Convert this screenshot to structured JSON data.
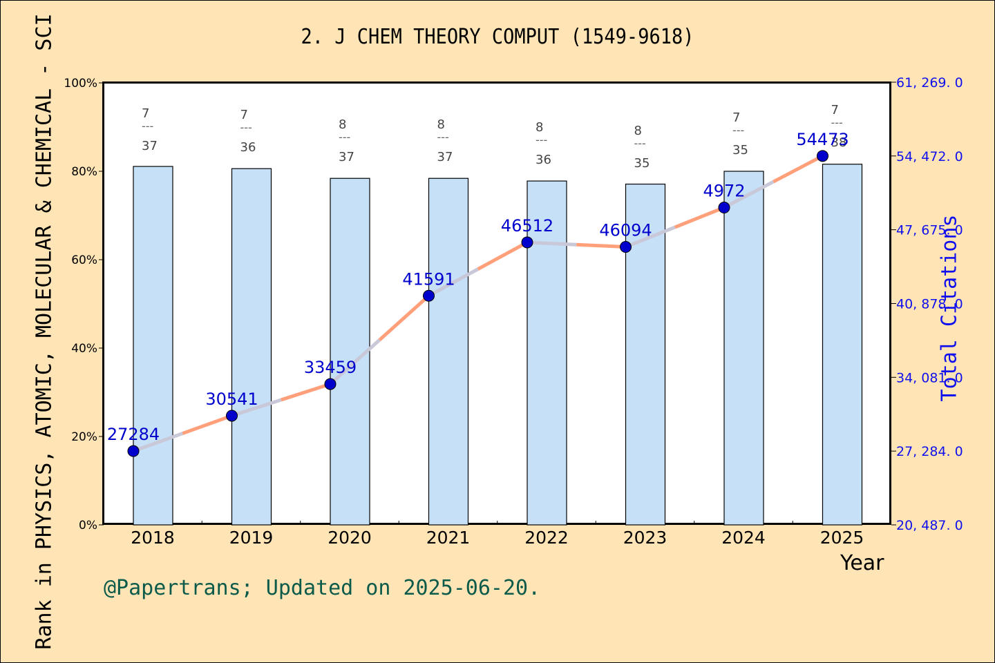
{
  "header": {
    "title": "2. J CHEM THEORY COMPUT (1549-9618)"
  },
  "axes": {
    "left_label": "Rank in PHYSICS, ATOMIC, MOLECULAR & CHEMICAL - SCI",
    "right_label": "Total Citations",
    "x_label": "Year",
    "left_ticks": [
      "0%",
      "20%",
      "40%",
      "60%",
      "80%",
      "100%"
    ],
    "right_ticks": [
      "20, 487. 0",
      "27, 284. 0",
      "34, 081. 0",
      "40, 878. 0",
      "47, 675. 0",
      "54, 472. 0",
      "61, 269. 0"
    ]
  },
  "footer": {
    "text": "@Papertrans; Updated on 2025-06-20."
  },
  "colors": {
    "background": "#FFE4B5",
    "bar_fill": "#C6E0F7",
    "line": "#FFA07A",
    "marker": "#0000CD",
    "citation_label": "#0000CD",
    "right_axis": "#1010EE",
    "footer": "#0B5A4A"
  },
  "chart_data": [
    {
      "type": "bar",
      "title": "2. J CHEM THEORY COMPUT (1549-9618)",
      "xlabel": "Year",
      "ylabel": "Rank in PHYSICS, ATOMIC, MOLECULAR & CHEMICAL - SCI",
      "categories": [
        "2018",
        "2019",
        "2020",
        "2021",
        "2022",
        "2023",
        "2024",
        "2025"
      ],
      "rank": [
        7,
        7,
        8,
        8,
        8,
        8,
        7,
        7
      ],
      "total_in_category": [
        37,
        36,
        37,
        37,
        36,
        35,
        35,
        38
      ],
      "bar_labels": [
        "7/37",
        "7/36",
        "8/37",
        "8/37",
        "8/36",
        "8/35",
        "7/35",
        "7/38"
      ],
      "values_percent": [
        81.1,
        80.6,
        78.4,
        78.4,
        77.8,
        77.1,
        80.0,
        81.6
      ],
      "ylim": [
        0,
        100
      ],
      "y_ticks": [
        "0%",
        "20%",
        "40%",
        "60%",
        "80%",
        "100%"
      ]
    },
    {
      "type": "line",
      "name": "Total Citations",
      "ylabel": "Total Citations",
      "categories": [
        "2018",
        "2019",
        "2020",
        "2021",
        "2022",
        "2023",
        "2024",
        "2025"
      ],
      "values": [
        27284,
        30541,
        33459,
        41591,
        46512,
        46094,
        4972,
        54473
      ],
      "labels": [
        "27284",
        "30541",
        "33459",
        "41591",
        "46512",
        "46094",
        "4972",
        "54473"
      ],
      "ylim": [
        20487,
        61269
      ],
      "y_ticks": [
        20487.0,
        27284.0,
        34081.0,
        40878.0,
        47675.0,
        54472.0,
        61269.0
      ],
      "axis_position": "right",
      "grid": false
    }
  ]
}
